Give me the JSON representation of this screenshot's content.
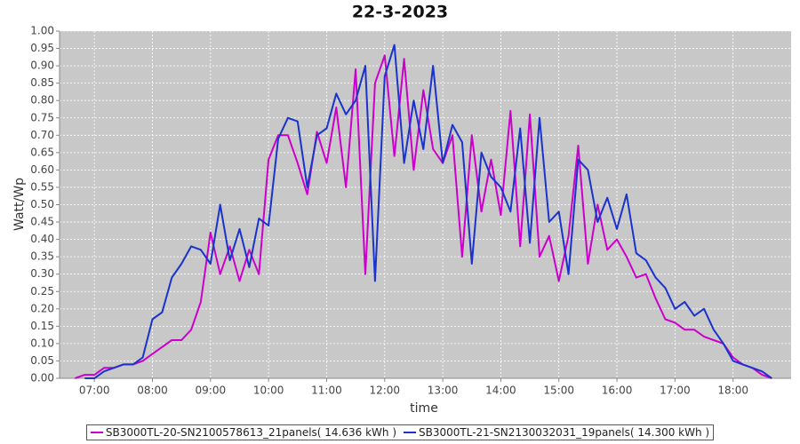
{
  "chart_data": {
    "type": "line",
    "title": "22-3-2023",
    "x_label": "time",
    "y_label": "Watt/Wp",
    "x": [
      "06:40",
      "06:50",
      "07:00",
      "07:10",
      "07:20",
      "07:30",
      "07:40",
      "07:50",
      "08:00",
      "08:10",
      "08:20",
      "08:30",
      "08:40",
      "08:50",
      "09:00",
      "09:10",
      "09:20",
      "09:30",
      "09:40",
      "09:50",
      "10:00",
      "10:10",
      "10:20",
      "10:30",
      "10:40",
      "10:50",
      "11:00",
      "11:10",
      "11:20",
      "11:30",
      "11:40",
      "11:50",
      "12:00",
      "12:10",
      "12:20",
      "12:30",
      "12:40",
      "12:50",
      "13:00",
      "13:10",
      "13:20",
      "13:30",
      "13:40",
      "13:50",
      "14:00",
      "14:10",
      "14:20",
      "14:30",
      "14:40",
      "14:50",
      "15:00",
      "15:10",
      "15:20",
      "15:30",
      "15:40",
      "15:50",
      "16:00",
      "16:10",
      "16:20",
      "16:30",
      "16:40",
      "16:50",
      "17:00",
      "17:10",
      "17:20",
      "17:30",
      "17:40",
      "17:50",
      "18:00",
      "18:10",
      "18:20",
      "18:30",
      "18:40"
    ],
    "series": [
      {
        "name": "SB3000TL-20-SN2100578613_21panels( 14.636 kWh )",
        "color": "#cc00cc",
        "values": [
          0.0,
          0.01,
          0.01,
          0.03,
          0.03,
          0.04,
          0.04,
          0.05,
          0.07,
          0.09,
          0.11,
          0.11,
          0.14,
          0.22,
          0.42,
          0.3,
          0.38,
          0.28,
          0.37,
          0.3,
          0.63,
          0.7,
          0.7,
          0.62,
          0.53,
          0.71,
          0.62,
          0.78,
          0.55,
          0.89,
          0.3,
          0.85,
          0.93,
          0.64,
          0.92,
          0.6,
          0.83,
          0.66,
          0.62,
          0.7,
          0.35,
          0.7,
          0.48,
          0.63,
          0.47,
          0.77,
          0.38,
          0.76,
          0.35,
          0.41,
          0.28,
          0.41,
          0.67,
          0.33,
          0.5,
          0.37,
          0.4,
          0.35,
          0.29,
          0.3,
          0.23,
          0.17,
          0.16,
          0.14,
          0.14,
          0.12,
          0.11,
          0.1,
          0.06,
          0.04,
          0.03,
          0.01,
          0.0
        ]
      },
      {
        "name": "SB3000TL-21-SN2130032031_19panels( 14.300 kWh )",
        "color": "#1a33cc",
        "values": [
          null,
          0.0,
          0.0,
          0.02,
          0.03,
          0.04,
          0.04,
          0.06,
          0.17,
          0.19,
          0.29,
          0.33,
          0.38,
          0.37,
          0.33,
          0.5,
          0.34,
          0.43,
          0.32,
          0.46,
          0.44,
          0.69,
          0.75,
          0.74,
          0.55,
          0.7,
          0.72,
          0.82,
          0.76,
          0.8,
          0.9,
          0.28,
          0.87,
          0.96,
          0.62,
          0.8,
          0.66,
          0.9,
          0.62,
          0.73,
          0.68,
          0.33,
          0.65,
          0.58,
          0.55,
          0.48,
          0.72,
          0.39,
          0.75,
          0.45,
          0.48,
          0.3,
          0.63,
          0.6,
          0.45,
          0.52,
          0.43,
          0.53,
          0.36,
          0.34,
          0.29,
          0.26,
          0.2,
          0.22,
          0.18,
          0.2,
          0.14,
          0.1,
          0.05,
          0.04,
          0.03,
          0.02,
          0.0
        ]
      }
    ],
    "xlim": [
      "06:24",
      "19:00"
    ],
    "xticks": [
      "07:00",
      "08:00",
      "09:00",
      "10:00",
      "11:00",
      "12:00",
      "13:00",
      "14:00",
      "15:00",
      "16:00",
      "17:00",
      "18:00"
    ],
    "ylim": [
      0,
      1
    ],
    "yticks": [
      {
        "value": 0,
        "label": "0.00"
      },
      {
        "value": 0.05,
        "label": "0.05"
      },
      {
        "value": 0.1,
        "label": "0.10"
      },
      {
        "value": 0.15,
        "label": "0.15"
      },
      {
        "value": 0.2,
        "label": "0.20"
      },
      {
        "value": 0.25,
        "label": "0.25"
      },
      {
        "value": 0.3,
        "label": "0.30"
      },
      {
        "value": 0.35,
        "label": "0.35"
      },
      {
        "value": 0.4,
        "label": "0.40"
      },
      {
        "value": 0.45,
        "label": "0.45"
      },
      {
        "value": 0.5,
        "label": "0.50"
      },
      {
        "value": 0.55,
        "label": "0.55"
      },
      {
        "value": 0.6,
        "label": "0.60"
      },
      {
        "value": 0.65,
        "label": "0.65"
      },
      {
        "value": 0.7,
        "label": "0.70"
      },
      {
        "value": 0.75,
        "label": "0.75"
      },
      {
        "value": 0.8,
        "label": "0.80"
      },
      {
        "value": 0.85,
        "label": "0.85"
      },
      {
        "value": 0.9,
        "label": "0.90"
      },
      {
        "value": 0.95,
        "label": "0.95"
      },
      {
        "value": 1,
        "label": "1.00"
      }
    ],
    "grid": true,
    "legend": "bottom"
  }
}
